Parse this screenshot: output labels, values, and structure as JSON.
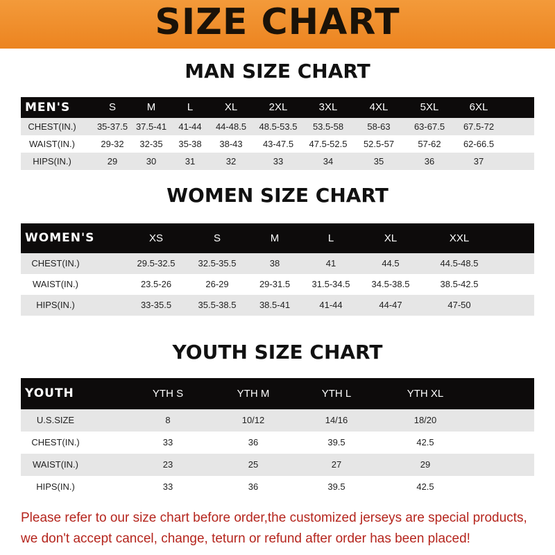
{
  "title": "SIZE CHART",
  "colors": {
    "banner": "#ec8420",
    "header_row": "#0d0b0b",
    "stripe": "#e6e6e6",
    "note": "#b5251d"
  },
  "sections": [
    {
      "title": "MAN SIZE CHART",
      "header": [
        "MEN'S",
        "S",
        "M",
        "L",
        "XL",
        "2XL",
        "3XL",
        "4XL",
        "5XL",
        "6XL"
      ],
      "rows": [
        [
          "CHEST(IN.)",
          "35-37.5",
          "37.5-41",
          "41-44",
          "44-48.5",
          "48.5-53.5",
          "53.5-58",
          "58-63",
          "63-67.5",
          "67.5-72"
        ],
        [
          "WAIST(IN.)",
          "29-32",
          "32-35",
          "35-38",
          "38-43",
          "43-47.5",
          "47.5-52.5",
          "52.5-57",
          "57-62",
          "62-66.5"
        ],
        [
          "HIPS(IN.)",
          "29",
          "30",
          "31",
          "32",
          "33",
          "34",
          "35",
          "36",
          "37"
        ]
      ]
    },
    {
      "title": "WOMEN SIZE CHART",
      "header": [
        "WOMEN'S",
        "XS",
        "S",
        "M",
        "L",
        "XL",
        "XXL"
      ],
      "rows": [
        [
          "CHEST(IN.)",
          "29.5-32.5",
          "32.5-35.5",
          "38",
          "41",
          "44.5",
          "44.5-48.5"
        ],
        [
          "WAIST(IN.)",
          "23.5-26",
          "26-29",
          "29-31.5",
          "31.5-34.5",
          "34.5-38.5",
          "38.5-42.5"
        ],
        [
          "HIPS(IN.)",
          "33-35.5",
          "35.5-38.5",
          "38.5-41",
          "41-44",
          "44-47",
          "47-50"
        ]
      ]
    },
    {
      "title": "YOUTH SIZE CHART",
      "header": [
        "YOUTH",
        "YTH S",
        "YTH M",
        "YTH L",
        "YTH XL"
      ],
      "rows": [
        [
          "U.S.SIZE",
          "8",
          "10/12",
          "14/16",
          "18/20"
        ],
        [
          "CHEST(IN.)",
          "33",
          "36",
          "39.5",
          "42.5"
        ],
        [
          "WAIST(IN.)",
          "23",
          "25",
          "27",
          "29"
        ],
        [
          "HIPS(IN.)",
          "33",
          "36",
          "39.5",
          "42.5"
        ]
      ]
    }
  ],
  "notice": [
    "Please refer to our size chart before order,the customized jerseys are special products,",
    "we don't accept cancel, change, teturn or refund after order has been placed!"
  ]
}
